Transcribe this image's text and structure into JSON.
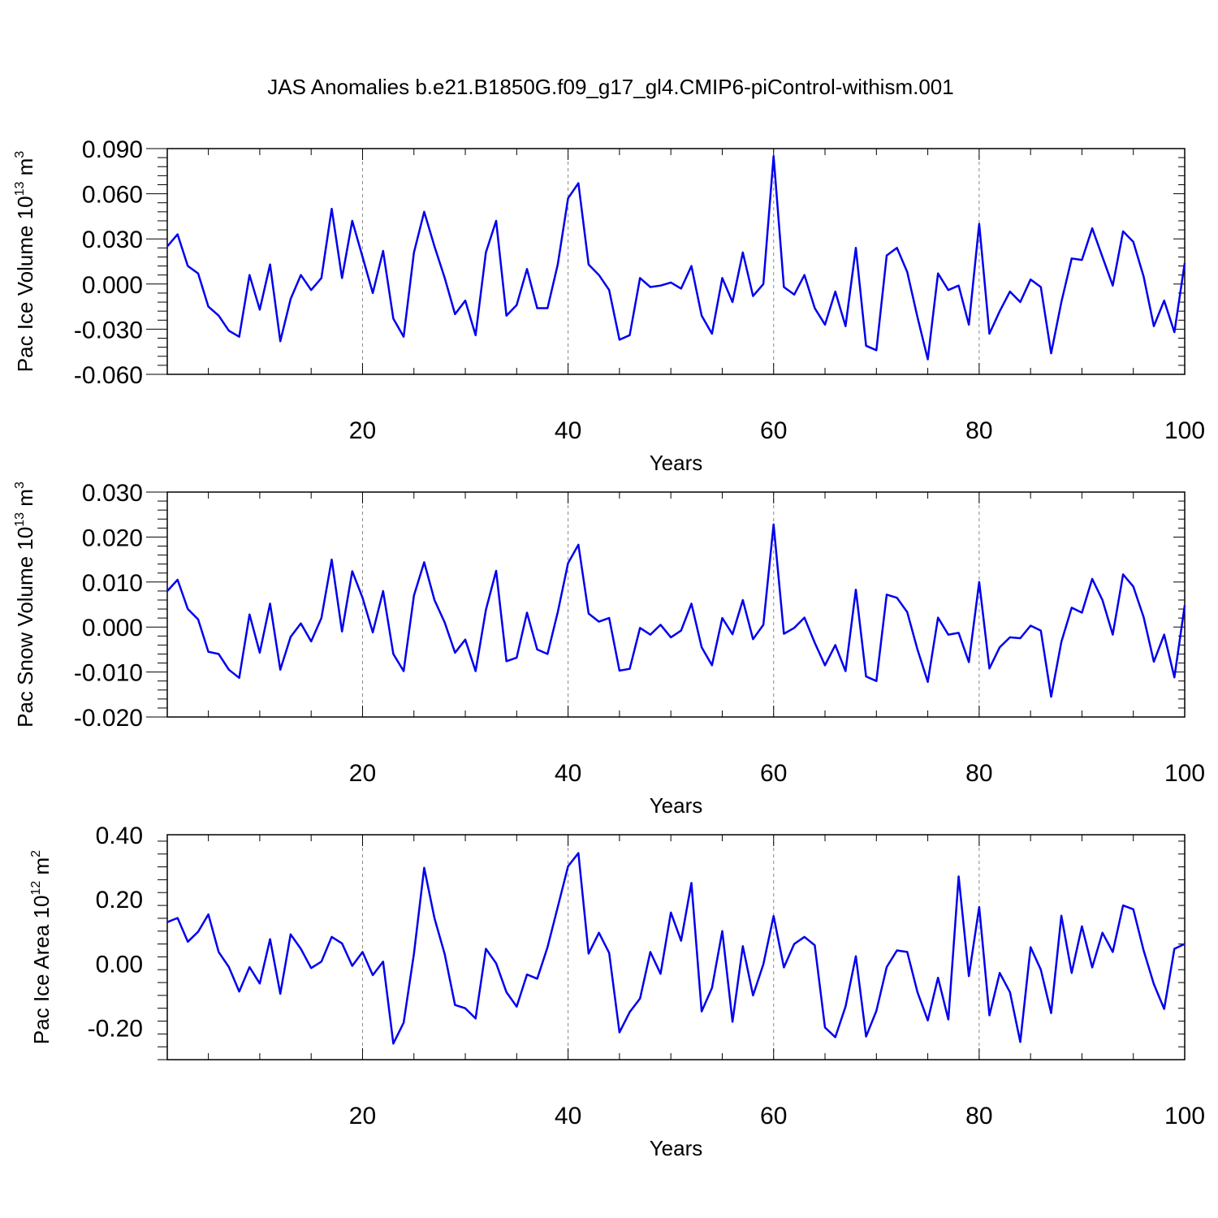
{
  "title": "JAS Anomalies b.e21.B1850G.f09_g17_gl4.CMIP6-piControl-withism.001",
  "chart_data": [
    {
      "type": "line",
      "ylabel": {
        "text": "Pac Ice Volume 10",
        "exp": "13",
        "unit": " m",
        "unit_exp": "3"
      },
      "xlabel": "Years",
      "xlim": [
        1,
        100
      ],
      "ylim": [
        -0.06,
        0.09
      ],
      "xticks": [
        20,
        40,
        60,
        80,
        100
      ],
      "yticks": [
        -0.06,
        -0.03,
        0.0,
        0.03,
        0.06,
        0.09
      ],
      "ytick_labels": [
        "-0.060",
        "-0.030",
        "0.000",
        "0.030",
        "0.060",
        "0.090"
      ],
      "grid_x": [
        20,
        40,
        60,
        80
      ],
      "line_color": "#0000ee",
      "series": [
        {
          "x": [
            1,
            2,
            3,
            4,
            5,
            6,
            7,
            8,
            9,
            10,
            11,
            12,
            13,
            14,
            15,
            16,
            17,
            18,
            19,
            20,
            21,
            22,
            23,
            24,
            25,
            26,
            27,
            28,
            29,
            30,
            31,
            32,
            33,
            34,
            35,
            36,
            37,
            38,
            39,
            40,
            41,
            42,
            43,
            44,
            45,
            46,
            47,
            48,
            49,
            50,
            51,
            52,
            53,
            54,
            55,
            56,
            57,
            58,
            59,
            60,
            61,
            62,
            63,
            64,
            65,
            66,
            67,
            68,
            69,
            70,
            71,
            72,
            73,
            74,
            75,
            76,
            77,
            78,
            79,
            80,
            81,
            82,
            83,
            84,
            85,
            86,
            87,
            88,
            89,
            90,
            91,
            92,
            93,
            94,
            95,
            96,
            97,
            98,
            99,
            100
          ],
          "y": [
            0.025,
            0.033,
            0.012,
            0.007,
            -0.015,
            -0.021,
            -0.031,
            -0.035,
            0.006,
            -0.017,
            0.013,
            -0.038,
            -0.01,
            0.006,
            -0.004,
            0.004,
            0.05,
            0.004,
            0.042,
            0.018,
            -0.006,
            0.022,
            -0.023,
            -0.035,
            0.021,
            0.048,
            0.025,
            0.004,
            -0.02,
            -0.011,
            -0.034,
            0.021,
            0.042,
            -0.021,
            -0.014,
            0.01,
            -0.016,
            -0.016,
            0.013,
            0.057,
            0.067,
            0.013,
            0.006,
            -0.004,
            -0.037,
            -0.034,
            0.004,
            -0.002,
            -0.001,
            0.001,
            -0.003,
            0.012,
            -0.021,
            -0.033,
            0.004,
            -0.012,
            0.021,
            -0.008,
            0.0,
            0.085,
            -0.002,
            -0.007,
            0.006,
            -0.016,
            -0.027,
            -0.005,
            -0.028,
            0.024,
            -0.041,
            -0.044,
            0.019,
            0.024,
            0.008,
            -0.022,
            -0.05,
            0.007,
            -0.004,
            -0.001,
            -0.027,
            0.04,
            -0.033,
            -0.018,
            -0.005,
            -0.012,
            0.003,
            -0.002,
            -0.046,
            -0.012,
            0.017,
            0.016,
            0.037,
            0.018,
            -0.001,
            0.035,
            0.028,
            0.005,
            -0.028,
            -0.011,
            -0.032,
            0.014
          ]
        }
      ]
    },
    {
      "type": "line",
      "ylabel": {
        "text": "Pac Snow Volume 10",
        "exp": "13",
        "unit": " m",
        "unit_exp": "3"
      },
      "xlabel": "Years",
      "xlim": [
        1,
        100
      ],
      "ylim": [
        -0.02,
        0.03
      ],
      "xticks": [
        20,
        40,
        60,
        80,
        100
      ],
      "yticks": [
        -0.02,
        -0.01,
        0.0,
        0.01,
        0.02,
        0.03
      ],
      "ytick_labels": [
        "-0.020",
        "-0.010",
        "0.000",
        "0.010",
        "0.020",
        "0.030"
      ],
      "grid_x": [
        20,
        40,
        60,
        80
      ],
      "line_color": "#0000ee",
      "series": [
        {
          "x": [
            1,
            2,
            3,
            4,
            5,
            6,
            7,
            8,
            9,
            10,
            11,
            12,
            13,
            14,
            15,
            16,
            17,
            18,
            19,
            20,
            21,
            22,
            23,
            24,
            25,
            26,
            27,
            28,
            29,
            30,
            31,
            32,
            33,
            34,
            35,
            36,
            37,
            38,
            39,
            40,
            41,
            42,
            43,
            44,
            45,
            46,
            47,
            48,
            49,
            50,
            51,
            52,
            53,
            54,
            55,
            56,
            57,
            58,
            59,
            60,
            61,
            62,
            63,
            64,
            65,
            66,
            67,
            68,
            69,
            70,
            71,
            72,
            73,
            74,
            75,
            76,
            77,
            78,
            79,
            80,
            81,
            82,
            83,
            84,
            85,
            86,
            87,
            88,
            89,
            90,
            91,
            92,
            93,
            94,
            95,
            96,
            97,
            98,
            99,
            100
          ],
          "y": [
            0.008,
            0.0105,
            0.004,
            0.0017,
            -0.0055,
            -0.006,
            -0.0095,
            -0.0113,
            0.0028,
            -0.0057,
            0.0052,
            -0.0095,
            -0.0022,
            0.0008,
            -0.0032,
            0.002,
            0.015,
            -0.001,
            0.0124,
            0.0065,
            -0.0012,
            0.008,
            -0.006,
            -0.0098,
            0.007,
            0.0144,
            0.006,
            0.001,
            -0.0057,
            -0.0028,
            -0.0098,
            0.0038,
            0.0125,
            -0.0076,
            -0.0068,
            0.0032,
            -0.005,
            -0.006,
            0.0033,
            0.0142,
            0.0183,
            0.003,
            0.0012,
            0.002,
            -0.0097,
            -0.0093,
            -0.0002,
            -0.0017,
            0.0005,
            -0.0023,
            -0.0008,
            0.0052,
            -0.0045,
            -0.0085,
            0.002,
            -0.0016,
            0.006,
            -0.0027,
            0.0005,
            0.0228,
            -0.0015,
            -0.0002,
            0.0021,
            -0.0035,
            -0.0085,
            -0.004,
            -0.0098,
            0.0083,
            -0.011,
            -0.012,
            0.0072,
            0.0065,
            0.0033,
            -0.005,
            -0.0122,
            0.0021,
            -0.0017,
            -0.0013,
            -0.0078,
            0.01,
            -0.0092,
            -0.0045,
            -0.0023,
            -0.0025,
            0.0003,
            -0.0008,
            -0.0155,
            -0.0033,
            0.0043,
            0.0032,
            0.0107,
            0.006,
            -0.0017,
            0.0117,
            0.009,
            0.0022,
            -0.0077,
            -0.0017,
            -0.0112,
            0.0048
          ]
        }
      ]
    },
    {
      "type": "line",
      "ylabel": {
        "text": "Pac Ice Area 10",
        "exp": "12",
        "unit": " m",
        "unit_exp": "2"
      },
      "xlabel": "Years",
      "xlim": [
        1,
        100
      ],
      "ylim": [
        -0.3,
        0.4
      ],
      "xticks": [
        20,
        40,
        60,
        80,
        100
      ],
      "yticks": [
        -0.2,
        0.0,
        0.2,
        0.4
      ],
      "ytick_labels": [
        "-0.20",
        "0.00",
        "0.20",
        "0.40"
      ],
      "grid_x": [
        20,
        40,
        60,
        80
      ],
      "line_color": "#0000ee",
      "series": [
        {
          "x": [
            1,
            2,
            3,
            4,
            5,
            6,
            7,
            8,
            9,
            10,
            11,
            12,
            13,
            14,
            15,
            16,
            17,
            18,
            19,
            20,
            21,
            22,
            23,
            24,
            25,
            26,
            27,
            28,
            29,
            30,
            31,
            32,
            33,
            34,
            35,
            36,
            37,
            38,
            39,
            40,
            41,
            42,
            43,
            44,
            45,
            46,
            47,
            48,
            49,
            50,
            51,
            52,
            53,
            54,
            55,
            56,
            57,
            58,
            59,
            60,
            61,
            62,
            63,
            64,
            65,
            66,
            67,
            68,
            69,
            70,
            71,
            72,
            73,
            74,
            75,
            76,
            77,
            78,
            79,
            80,
            81,
            82,
            83,
            84,
            85,
            86,
            87,
            88,
            89,
            90,
            91,
            92,
            93,
            94,
            95,
            96,
            97,
            98,
            99,
            100
          ],
          "y": [
            0.128,
            0.141,
            0.067,
            0.098,
            0.152,
            0.035,
            -0.012,
            -0.088,
            -0.012,
            -0.063,
            0.075,
            -0.095,
            0.09,
            0.045,
            -0.015,
            0.005,
            0.082,
            0.062,
            -0.008,
            0.035,
            -0.037,
            0.005,
            -0.25,
            -0.185,
            0.03,
            0.297,
            0.14,
            0.028,
            -0.13,
            -0.14,
            -0.172,
            0.045,
            0.0,
            -0.09,
            -0.135,
            -0.035,
            -0.048,
            0.05,
            0.175,
            0.302,
            0.343,
            0.03,
            0.095,
            0.032,
            -0.215,
            -0.152,
            -0.11,
            0.035,
            -0.033,
            0.158,
            0.07,
            0.25,
            -0.15,
            -0.077,
            0.1,
            -0.182,
            0.053,
            -0.1,
            -0.003,
            0.147,
            -0.013,
            0.06,
            0.082,
            0.056,
            -0.2,
            -0.23,
            -0.135,
            0.022,
            -0.228,
            -0.148,
            -0.012,
            0.04,
            0.035,
            -0.09,
            -0.178,
            -0.045,
            -0.175,
            0.27,
            -0.04,
            0.175,
            -0.162,
            -0.03,
            -0.09,
            -0.245,
            0.05,
            -0.02,
            -0.155,
            0.148,
            -0.03,
            0.115,
            -0.013,
            0.095,
            0.035,
            0.18,
            0.168,
            0.04,
            -0.065,
            -0.142,
            0.045,
            0.06
          ]
        }
      ]
    }
  ]
}
